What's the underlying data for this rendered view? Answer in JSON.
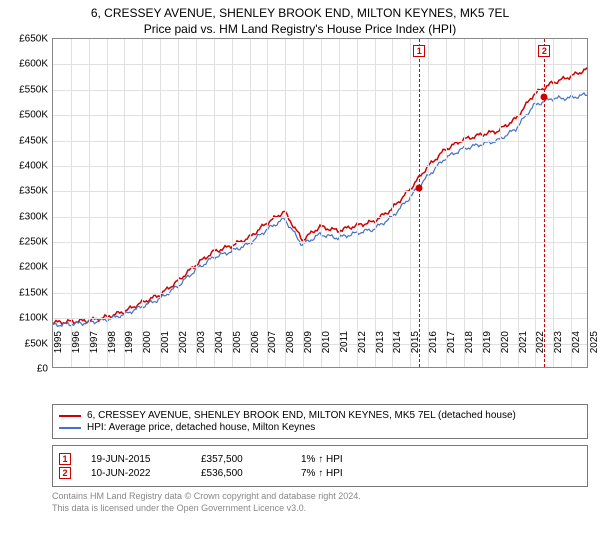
{
  "title": {
    "line1": "6, CRESSEY AVENUE, SHENLEY BROOK END, MILTON KEYNES, MK5 7EL",
    "line2": "Price paid vs. HM Land Registry's House Price Index (HPI)"
  },
  "chart": {
    "type": "line",
    "ylim": [
      0,
      650000
    ],
    "ytick_step": 50000,
    "yticks": [
      "£0",
      "£50K",
      "£100K",
      "£150K",
      "£200K",
      "£250K",
      "£300K",
      "£350K",
      "£400K",
      "£450K",
      "£500K",
      "£550K",
      "£600K",
      "£650K"
    ],
    "xlim": [
      1995,
      2025
    ],
    "xticks": [
      1995,
      1996,
      1997,
      1998,
      1999,
      2000,
      2001,
      2002,
      2003,
      2004,
      2005,
      2006,
      2007,
      2008,
      2009,
      2010,
      2011,
      2012,
      2013,
      2014,
      2015,
      2016,
      2017,
      2018,
      2019,
      2020,
      2021,
      2022,
      2023,
      2024,
      2025
    ],
    "grid_color": "#e0e0e0",
    "background_color": "#ffffff",
    "series": [
      {
        "name": "property",
        "color": "#d00000",
        "width": 1.5,
        "points": [
          [
            1995,
            88
          ],
          [
            1996,
            90
          ],
          [
            1997,
            92
          ],
          [
            1998,
            99
          ],
          [
            1999,
            110
          ],
          [
            2000,
            128
          ],
          [
            2001,
            143
          ],
          [
            2002,
            170
          ],
          [
            2003,
            202
          ],
          [
            2004,
            228
          ],
          [
            2005,
            240
          ],
          [
            2006,
            256
          ],
          [
            2007,
            285
          ],
          [
            2008,
            308
          ],
          [
            2009,
            252
          ],
          [
            2010,
            278
          ],
          [
            2011,
            270
          ],
          [
            2012,
            280
          ],
          [
            2013,
            288
          ],
          [
            2014,
            312
          ],
          [
            2015,
            350
          ],
          [
            2016,
            395
          ],
          [
            2017,
            430
          ],
          [
            2018,
            450
          ],
          [
            2019,
            460
          ],
          [
            2020,
            468
          ],
          [
            2021,
            492
          ],
          [
            2022,
            540
          ],
          [
            2023,
            562
          ],
          [
            2024,
            575
          ],
          [
            2025,
            590
          ]
        ]
      },
      {
        "name": "hpi",
        "color": "#4472c4",
        "width": 1.2,
        "points": [
          [
            1995,
            83
          ],
          [
            1996,
            85
          ],
          [
            1997,
            88
          ],
          [
            1998,
            94
          ],
          [
            1999,
            104
          ],
          [
            2000,
            120
          ],
          [
            2001,
            135
          ],
          [
            2002,
            160
          ],
          [
            2003,
            192
          ],
          [
            2004,
            217
          ],
          [
            2005,
            229
          ],
          [
            2006,
            244
          ],
          [
            2007,
            272
          ],
          [
            2008,
            294
          ],
          [
            2009,
            242
          ],
          [
            2010,
            263
          ],
          [
            2011,
            256
          ],
          [
            2012,
            265
          ],
          [
            2013,
            273
          ],
          [
            2014,
            296
          ],
          [
            2015,
            334
          ],
          [
            2016,
            376
          ],
          [
            2017,
            413
          ],
          [
            2018,
            432
          ],
          [
            2019,
            441
          ],
          [
            2020,
            449
          ],
          [
            2021,
            472
          ],
          [
            2022,
            518
          ],
          [
            2023,
            532
          ],
          [
            2024,
            533
          ],
          [
            2025,
            540
          ]
        ]
      }
    ],
    "markers": [
      {
        "id": "1",
        "x": 2015.5,
        "y_val": 357500
      },
      {
        "id": "2",
        "x": 2022.5,
        "y_val": 536500
      }
    ]
  },
  "legend": {
    "items": [
      {
        "color": "#d00000",
        "label": "6, CRESSEY AVENUE, SHENLEY BROOK END, MILTON KEYNES, MK5 7EL (detached house)"
      },
      {
        "color": "#4472c4",
        "label": "HPI: Average price, detached house, Milton Keynes"
      }
    ]
  },
  "sales": [
    {
      "id": "1",
      "date": "19-JUN-2015",
      "price": "£357,500",
      "pct": "1% ↑ HPI"
    },
    {
      "id": "2",
      "date": "10-JUN-2022",
      "price": "£536,500",
      "pct": "7% ↑ HPI"
    }
  ],
  "footer": {
    "line1": "Contains HM Land Registry data © Crown copyright and database right 2024.",
    "line2": "This data is licensed under the Open Government Licence v3.0."
  }
}
